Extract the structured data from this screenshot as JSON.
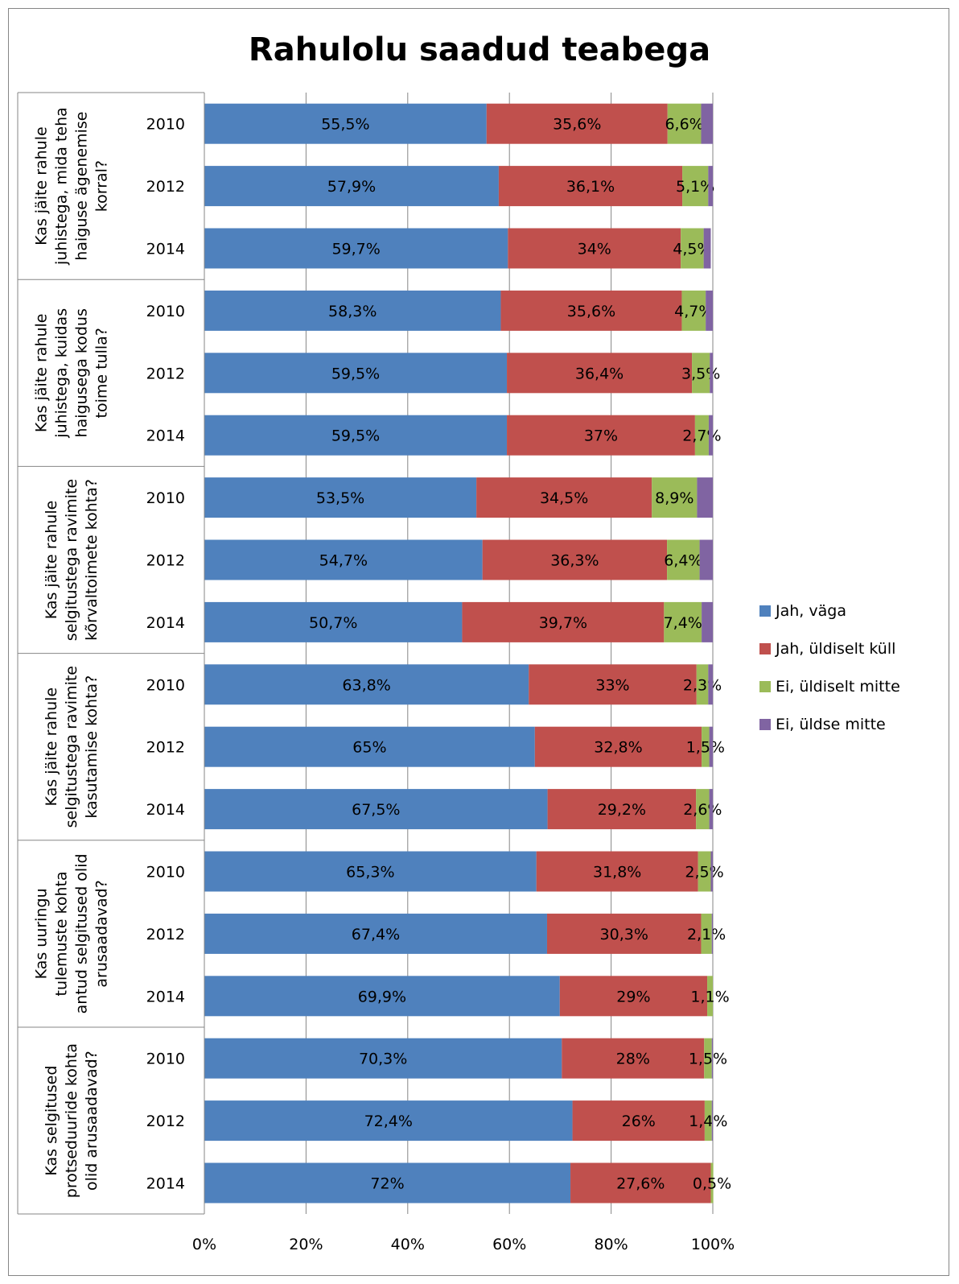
{
  "chart_data": {
    "type": "bar",
    "orientation": "horizontal",
    "stacked": "percent",
    "title": "Rahulolu saadud teabega",
    "xlim": [
      0,
      100
    ],
    "x_ticks": [
      "0%",
      "20%",
      "40%",
      "60%",
      "80%",
      "100%"
    ],
    "grid": true,
    "legend_position": "right",
    "colors": [
      "#4F81BD",
      "#C0504D",
      "#9BBB59",
      "#8064A2"
    ],
    "series_names": [
      "Jah, väga",
      "Jah, üldiselt küll",
      "Ei, üldiselt mitte",
      "Ei, üldse mitte"
    ],
    "groups": [
      {
        "question": [
          "Kas jäite rahule",
          "juhistega, mida teha",
          "haiguse ägenemise",
          "korral?"
        ],
        "rows": [
          {
            "year": "2010",
            "values": [
              55.5,
              35.6,
              6.6,
              2.3
            ],
            "labels": [
              "55,5%",
              "35,6%",
              "6,6%",
              ""
            ]
          },
          {
            "year": "2012",
            "values": [
              57.9,
              36.1,
              5.1,
              0.9
            ],
            "labels": [
              "57,9%",
              "36,1%",
              "5,1%",
              ""
            ]
          },
          {
            "year": "2014",
            "values": [
              59.7,
              34,
              4.5,
              1.4
            ],
            "labels": [
              "59,7%",
              "34%",
              "4,5%",
              ""
            ]
          }
        ]
      },
      {
        "question": [
          "Kas jäite rahule",
          "juhistega, kuidas",
          "haigusega kodus",
          "toime tulla?"
        ],
        "rows": [
          {
            "year": "2010",
            "values": [
              58.3,
              35.6,
              4.7,
              1.4
            ],
            "labels": [
              "58,3%",
              "35,6%",
              "4,7%",
              ""
            ]
          },
          {
            "year": "2012",
            "values": [
              59.5,
              36.4,
              3.5,
              0.6
            ],
            "labels": [
              "59,5%",
              "36,4%",
              "3,5%",
              ""
            ]
          },
          {
            "year": "2014",
            "values": [
              59.5,
              37,
              2.7,
              0.8
            ],
            "labels": [
              "59,5%",
              "37%",
              "2,7%",
              ""
            ]
          }
        ]
      },
      {
        "question": [
          "Kas jäite rahule",
          "selgitustega ravimite",
          "kõrvaltoimete kohta?"
        ],
        "rows": [
          {
            "year": "2010",
            "values": [
              53.5,
              34.5,
              8.9,
              3.1
            ],
            "labels": [
              "53,5%",
              "34,5%",
              "8,9%",
              ""
            ]
          },
          {
            "year": "2012",
            "values": [
              54.7,
              36.3,
              6.4,
              2.6
            ],
            "labels": [
              "54,7%",
              "36,3%",
              "6,4%",
              ""
            ]
          },
          {
            "year": "2014",
            "values": [
              50.7,
              39.7,
              7.4,
              2.2
            ],
            "labels": [
              "50,7%",
              "39,7%",
              "7,4%",
              ""
            ]
          }
        ]
      },
      {
        "question": [
          "Kas jäite rahule",
          "selgitustega ravimite",
          "kasutamise kohta?"
        ],
        "rows": [
          {
            "year": "2010",
            "values": [
              63.8,
              33,
              2.3,
              0.9
            ],
            "labels": [
              "63,8%",
              "33%",
              "2,3%",
              ""
            ]
          },
          {
            "year": "2012",
            "values": [
              65,
              32.8,
              1.5,
              0.7
            ],
            "labels": [
              "65%",
              "32,8%",
              "1,5%",
              ""
            ]
          },
          {
            "year": "2014",
            "values": [
              67.5,
              29.2,
              2.6,
              0.7
            ],
            "labels": [
              "67,5%",
              "29,2%",
              "2,6%",
              ""
            ]
          }
        ]
      },
      {
        "question": [
          "Kas uuringu",
          "tulemuste kohta",
          "antud selgitused olid",
          "arusaadavad?"
        ],
        "rows": [
          {
            "year": "2010",
            "values": [
              65.3,
              31.8,
              2.5,
              0.4
            ],
            "labels": [
              "65,3%",
              "31,8%",
              "2,5%",
              ""
            ]
          },
          {
            "year": "2012",
            "values": [
              67.4,
              30.3,
              2.1,
              0.2
            ],
            "labels": [
              "67,4%",
              "30,3%",
              "2,1%",
              ""
            ]
          },
          {
            "year": "2014",
            "values": [
              69.9,
              29,
              1.1,
              0
            ],
            "labels": [
              "69,9%",
              "29%",
              "1,1%",
              ""
            ]
          }
        ]
      },
      {
        "question": [
          "Kas selgitused",
          "protseduuride kohta",
          "olid arusaadavad?"
        ],
        "rows": [
          {
            "year": "2010",
            "values": [
              70.3,
              28,
              1.5,
              0.2
            ],
            "labels": [
              "70,3%",
              "28%",
              "1,5%",
              ""
            ]
          },
          {
            "year": "2012",
            "values": [
              72.4,
              26,
              1.4,
              0.2
            ],
            "labels": [
              "72,4%",
              "26%",
              "1,4%",
              ""
            ]
          },
          {
            "year": "2014",
            "values": [
              72,
              27.6,
              0.5,
              0
            ],
            "labels": [
              "72%",
              "27,6%",
              "0,5%",
              ""
            ]
          }
        ]
      }
    ]
  }
}
